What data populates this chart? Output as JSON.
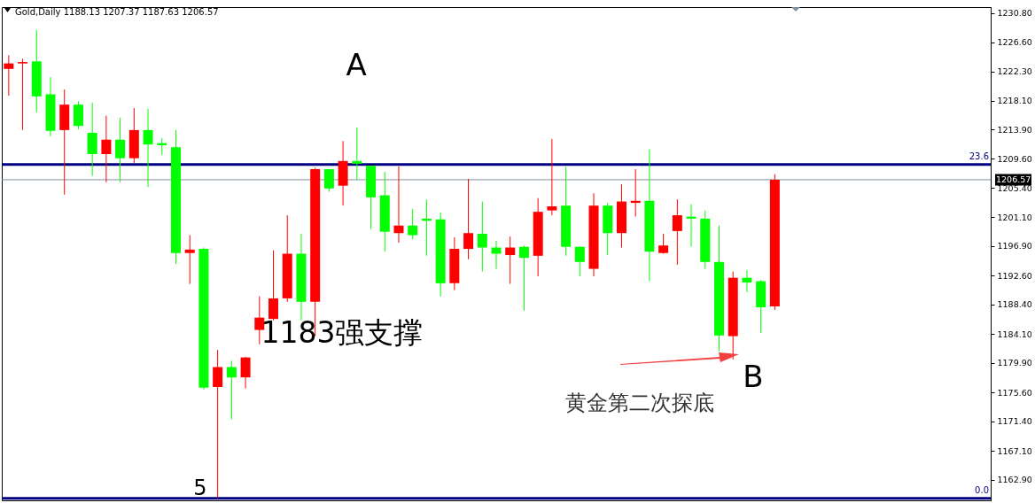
{
  "chart_data": {
    "type": "candlestick",
    "title": "Gold,Daily  1188.13 1207.37 1187.63 1206.57",
    "categories": [
      null,
      null,
      null,
      null,
      null,
      null,
      null,
      null,
      null,
      null,
      null,
      null,
      null,
      null,
      null,
      null,
      null,
      null,
      null,
      null,
      null,
      null,
      null,
      null,
      null,
      null,
      null,
      null,
      null,
      null,
      null,
      null,
      null,
      null,
      null,
      null,
      null,
      null,
      null,
      null,
      null,
      null,
      null,
      null,
      null,
      null,
      null,
      null,
      null,
      null,
      null,
      null,
      null,
      null,
      null,
      null,
      null,
      null,
      null,
      null,
      null,
      null,
      null,
      null,
      null,
      null,
      null,
      null,
      null,
      null,
      null
    ],
    "ohlc": [
      [
        1222.7,
        1224.7,
        1218.8,
        1223.5
      ],
      [
        1223.5,
        1224.2,
        1213.8,
        1223.7
      ],
      [
        1223.8,
        1228.4,
        1216.4,
        1218.7
      ],
      [
        1219.0,
        1221.5,
        1212.9,
        1213.7
      ],
      [
        1213.8,
        1219.7,
        1204.4,
        1217.5
      ],
      [
        1217.5,
        1218.0,
        1213.9,
        1214.4
      ],
      [
        1213.4,
        1217.8,
        1207.1,
        1210.3
      ],
      [
        1210.3,
        1215.9,
        1206.2,
        1212.4
      ],
      [
        1212.4,
        1215.6,
        1206.2,
        1209.7
      ],
      [
        1209.7,
        1217.0,
        1209.0,
        1213.8
      ],
      [
        1213.8,
        1216.9,
        1205.5,
        1211.7
      ],
      [
        1211.9,
        1212.6,
        1210.2,
        1211.6
      ],
      [
        1211.3,
        1213.8,
        1194.3,
        1195.9
      ],
      [
        1195.9,
        1198.5,
        1191.4,
        1196.4
      ],
      [
        1196.5,
        1196.7,
        1176.0,
        1176.3
      ],
      [
        1176.4,
        1181.8,
        1160.2,
        1179.3
      ],
      [
        1179.3,
        1180.2,
        1171.7,
        1177.8
      ],
      [
        1177.8,
        1180.8,
        1176.2,
        1180.7
      ],
      [
        1184.7,
        1189.6,
        1182.6,
        1186.5
      ],
      [
        1186.3,
        1196.3,
        1186.1,
        1189.3
      ],
      [
        1189.3,
        1201.4,
        1188.8,
        1195.8
      ],
      [
        1195.8,
        1198.7,
        1186.1,
        1188.8
      ],
      [
        1188.8,
        1208.3,
        1183.8,
        1208.1
      ],
      [
        1208.1,
        1208.1,
        1204.8,
        1205.3
      ],
      [
        1205.7,
        1212.2,
        1202.8,
        1209.3
      ],
      [
        1209.3,
        1214.2,
        1206.6,
        1208.9
      ],
      [
        1208.6,
        1208.6,
        1199.4,
        1204.0
      ],
      [
        1204.3,
        1207.7,
        1196.1,
        1199.0
      ],
      [
        1198.8,
        1208.5,
        1197.4,
        1199.9
      ],
      [
        1199.9,
        1202.3,
        1197.9,
        1198.5
      ],
      [
        1200.9,
        1203.7,
        1195.5,
        1200.6
      ],
      [
        1200.8,
        1201.8,
        1189.6,
        1191.5
      ],
      [
        1191.5,
        1198.2,
        1190.5,
        1196.5
      ],
      [
        1196.5,
        1206.7,
        1195.0,
        1198.8
      ],
      [
        1198.7,
        1203.4,
        1193.2,
        1196.7
      ],
      [
        1196.7,
        1197.7,
        1193.6,
        1195.8
      ],
      [
        1195.6,
        1198.3,
        1191.4,
        1196.7
      ],
      [
        1196.8,
        1197.0,
        1187.5,
        1195.2
      ],
      [
        1195.5,
        1203.9,
        1192.5,
        1201.9
      ],
      [
        1202.1,
        1212.5,
        1201.4,
        1202.7
      ],
      [
        1202.8,
        1208.4,
        1195.5,
        1196.8
      ],
      [
        1196.8,
        1196.9,
        1192.5,
        1194.6
      ],
      [
        1193.6,
        1204.6,
        1192.5,
        1202.8
      ],
      [
        1202.8,
        1203.2,
        1195.6,
        1198.8
      ],
      [
        1198.8,
        1205.9,
        1196.7,
        1203.4
      ],
      [
        1203.2,
        1208.1,
        1201.2,
        1203.5
      ],
      [
        1203.5,
        1211.0,
        1191.8,
        1196.1
      ],
      [
        1195.9,
        1198.7,
        1195.8,
        1197.0
      ],
      [
        1199.1,
        1203.7,
        1194.2,
        1201.4
      ],
      [
        1201.2,
        1203.0,
        1196.8,
        1200.9
      ],
      [
        1200.9,
        1202.1,
        1193.6,
        1194.6
      ],
      [
        1194.6,
        1199.9,
        1181.6,
        1183.9
      ],
      [
        1183.8,
        1193.2,
        1180.4,
        1192.3
      ],
      [
        1192.3,
        1193.4,
        1190.2,
        1191.6
      ],
      [
        1191.8,
        1192.0,
        1184.3,
        1188.0
      ],
      [
        1188.13,
        1207.37,
        1187.63,
        1206.57
      ],
      null,
      null,
      null,
      null,
      null,
      null,
      null,
      null,
      null,
      null,
      null,
      null,
      null,
      null,
      null
    ],
    "colors": [
      "#ff0000",
      "#ff0000",
      "#00ff00",
      "#00ff00",
      "#ff0000",
      "#00ff00",
      "#00ff00",
      "#ff0000",
      "#00ff00",
      "#ff0000",
      "#00ff00",
      "#00ff00",
      "#00ff00",
      "#ff0000",
      "#00ff00",
      "#ff0000",
      "#00ff00",
      "#ff0000",
      "#ff0000",
      "#ff0000",
      "#ff0000",
      "#00ff00",
      "#ff0000",
      "#00ff00",
      "#ff0000",
      "#00ff00",
      "#00ff00",
      "#00ff00",
      "#ff0000",
      "#00ff00",
      "#00ff00",
      "#00ff00",
      "#ff0000",
      "#ff0000",
      "#00ff00",
      "#00ff00",
      "#ff0000",
      "#00ff00",
      "#ff0000",
      "#ff0000",
      "#00ff00",
      "#00ff00",
      "#ff0000",
      "#00ff00",
      "#ff0000",
      "#ff0000",
      "#00ff00",
      "#ff0000",
      "#ff0000",
      "#00ff00",
      "#00ff00",
      "#00ff00",
      "#ff0000",
      "#00ff00",
      "#00ff00",
      "#ff0000",
      null,
      null,
      null,
      null,
      null,
      null,
      null,
      null,
      null,
      null,
      null,
      null,
      null,
      null,
      null
    ],
    "ylim": [
      1159.9,
      1231.7
    ],
    "yticks": [
      {
        "value": 1230.8,
        "label": "1230.80"
      },
      {
        "value": 1226.6,
        "label": "1226.60"
      },
      {
        "value": 1222.3,
        "label": "1222.30"
      },
      {
        "value": 1218.1,
        "label": "1218.10"
      },
      {
        "value": 1213.9,
        "label": "1213.90"
      },
      {
        "value": 1209.6,
        "label": "1209.60"
      },
      {
        "value": 1205.4,
        "label": "1205.40"
      },
      {
        "value": 1201.1,
        "label": "1201.10"
      },
      {
        "value": 1196.9,
        "label": "1196.90"
      },
      {
        "value": 1192.6,
        "label": "1192.60"
      },
      {
        "value": 1188.4,
        "label": "1188.40"
      },
      {
        "value": 1184.1,
        "label": "1184.10"
      },
      {
        "value": 1179.9,
        "label": "1179.90"
      },
      {
        "value": 1175.6,
        "label": "1175.60"
      },
      {
        "value": 1171.4,
        "label": "1171.40"
      },
      {
        "value": 1167.1,
        "label": "1167.10"
      },
      {
        "value": 1162.9,
        "label": "1162.90"
      }
    ],
    "tick_labels": "y",
    "ref_lines": [
      {
        "axis": "y",
        "value": 1208.8,
        "color": "#000080"
      },
      {
        "axis": "y",
        "value": 1206.57,
        "label": "1206.57",
        "color": "#8090a0"
      },
      {
        "axis": "y",
        "value": 1160.2,
        "color": "#000080"
      }
    ],
    "annotations": [
      "A",
      "1183强支撑",
      "黄金第二次探底",
      "B",
      "5",
      {
        "text": "23.6",
        "y": 1208.8
      },
      {
        "text": "0.0",
        "y": 1160.2
      }
    ]
  }
}
